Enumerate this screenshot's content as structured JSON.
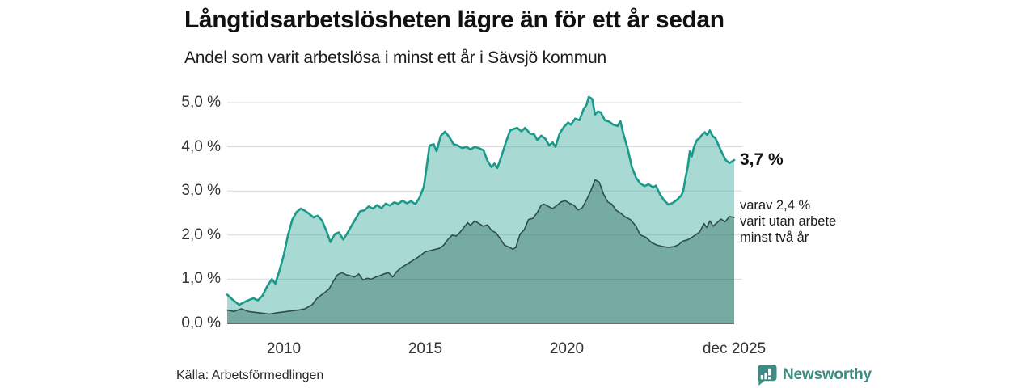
{
  "header": {
    "title": "Långtidsarbetslösheten lägre än för ett år sedan",
    "subtitle": "Andel som varit arbetslösa i minst ett år i Sävsjö kommun"
  },
  "annotations": {
    "end_value": "3,7 %",
    "secondary": [
      "varav 2,4 %",
      "varit utan arbete",
      "minst två år"
    ]
  },
  "footer": {
    "source": "Källa: Arbetsförmedlingen",
    "brand": "Newsworthy"
  },
  "colors": {
    "series1_line": "#1a9a8a",
    "series1_fill": "rgba(26,154,138,0.38)",
    "series2_line": "#2e4f47",
    "series2_fill": "rgba(30,90,76,0.36)",
    "gridline": "#d9d9d9",
    "axis": "#3a3a3a",
    "brand_teal": "#3d8b83"
  },
  "chart_data": {
    "type": "area",
    "title": "Långtidsarbetslösheten lägre än för ett år sedan",
    "subtitle": "Andel som varit arbetslösa i minst ett år i Sävsjö kommun",
    "unit": "%",
    "grid": true,
    "x_range": [
      2008.0,
      2025.92
    ],
    "y_range": [
      0,
      5.3
    ],
    "y_ticks": [
      5,
      4,
      3,
      2,
      1,
      0
    ],
    "y_tick_labels": [
      "5,0 %",
      "4,0 %",
      "3,0 %",
      "2,0 %",
      "1,0 %",
      "0,0 %"
    ],
    "x_tick_labels": [
      "2010",
      "2015",
      "2020",
      "dec 2025"
    ],
    "x_tick_years": [
      2010,
      2015,
      2020,
      2025.92
    ],
    "series": [
      {
        "name": "Arbetslösa minst ett år",
        "color": "#1a9a8a",
        "fill": "rgba(26,154,138,0.38)",
        "end_label": "3,7 %",
        "end_value": 3.7,
        "points": [
          [
            2008.0,
            0.65
          ],
          [
            2008.17,
            0.55
          ],
          [
            2008.42,
            0.42
          ],
          [
            2008.67,
            0.5
          ],
          [
            2008.92,
            0.57
          ],
          [
            2009.08,
            0.52
          ],
          [
            2009.25,
            0.63
          ],
          [
            2009.42,
            0.85
          ],
          [
            2009.58,
            1.0
          ],
          [
            2009.7,
            0.9
          ],
          [
            2009.85,
            1.2
          ],
          [
            2010.0,
            1.55
          ],
          [
            2010.15,
            2.0
          ],
          [
            2010.3,
            2.35
          ],
          [
            2010.45,
            2.52
          ],
          [
            2010.6,
            2.6
          ],
          [
            2010.75,
            2.55
          ],
          [
            2010.9,
            2.48
          ],
          [
            2011.05,
            2.4
          ],
          [
            2011.2,
            2.44
          ],
          [
            2011.35,
            2.33
          ],
          [
            2011.5,
            2.1
          ],
          [
            2011.65,
            1.84
          ],
          [
            2011.8,
            2.02
          ],
          [
            2011.95,
            2.06
          ],
          [
            2012.1,
            1.9
          ],
          [
            2012.25,
            2.05
          ],
          [
            2012.4,
            2.22
          ],
          [
            2012.55,
            2.38
          ],
          [
            2012.7,
            2.54
          ],
          [
            2012.85,
            2.56
          ],
          [
            2013.0,
            2.65
          ],
          [
            2013.15,
            2.6
          ],
          [
            2013.3,
            2.68
          ],
          [
            2013.45,
            2.61
          ],
          [
            2013.6,
            2.71
          ],
          [
            2013.75,
            2.67
          ],
          [
            2013.9,
            2.74
          ],
          [
            2014.05,
            2.71
          ],
          [
            2014.2,
            2.78
          ],
          [
            2014.35,
            2.72
          ],
          [
            2014.5,
            2.77
          ],
          [
            2014.65,
            2.7
          ],
          [
            2014.8,
            2.85
          ],
          [
            2014.95,
            3.1
          ],
          [
            2015.05,
            3.55
          ],
          [
            2015.15,
            4.03
          ],
          [
            2015.3,
            4.06
          ],
          [
            2015.4,
            3.9
          ],
          [
            2015.55,
            4.25
          ],
          [
            2015.7,
            4.34
          ],
          [
            2015.85,
            4.22
          ],
          [
            2016.0,
            4.06
          ],
          [
            2016.15,
            4.03
          ],
          [
            2016.3,
            3.97
          ],
          [
            2016.45,
            4.0
          ],
          [
            2016.6,
            3.94
          ],
          [
            2016.75,
            4.0
          ],
          [
            2016.9,
            3.97
          ],
          [
            2017.06,
            3.92
          ],
          [
            2017.2,
            3.68
          ],
          [
            2017.34,
            3.54
          ],
          [
            2017.45,
            3.62
          ],
          [
            2017.55,
            3.52
          ],
          [
            2017.7,
            3.8
          ],
          [
            2017.85,
            4.1
          ],
          [
            2018.0,
            4.37
          ],
          [
            2018.1,
            4.4
          ],
          [
            2018.25,
            4.43
          ],
          [
            2018.4,
            4.35
          ],
          [
            2018.53,
            4.43
          ],
          [
            2018.7,
            4.3
          ],
          [
            2018.85,
            4.28
          ],
          [
            2018.96,
            4.15
          ],
          [
            2019.1,
            4.25
          ],
          [
            2019.25,
            4.18
          ],
          [
            2019.38,
            4.03
          ],
          [
            2019.5,
            4.1
          ],
          [
            2019.6,
            4.0
          ],
          [
            2019.75,
            4.3
          ],
          [
            2019.9,
            4.45
          ],
          [
            2020.05,
            4.55
          ],
          [
            2020.15,
            4.5
          ],
          [
            2020.3,
            4.64
          ],
          [
            2020.45,
            4.6
          ],
          [
            2020.6,
            4.86
          ],
          [
            2020.7,
            4.95
          ],
          [
            2020.78,
            5.13
          ],
          [
            2020.9,
            5.08
          ],
          [
            2021.0,
            4.73
          ],
          [
            2021.1,
            4.8
          ],
          [
            2021.2,
            4.78
          ],
          [
            2021.35,
            4.6
          ],
          [
            2021.5,
            4.57
          ],
          [
            2021.65,
            4.5
          ],
          [
            2021.8,
            4.47
          ],
          [
            2021.9,
            4.58
          ],
          [
            2022.0,
            4.3
          ],
          [
            2022.15,
            3.97
          ],
          [
            2022.3,
            3.55
          ],
          [
            2022.45,
            3.3
          ],
          [
            2022.6,
            3.17
          ],
          [
            2022.75,
            3.11
          ],
          [
            2022.9,
            3.15
          ],
          [
            2023.05,
            3.08
          ],
          [
            2023.15,
            3.12
          ],
          [
            2023.3,
            2.92
          ],
          [
            2023.45,
            2.78
          ],
          [
            2023.6,
            2.69
          ],
          [
            2023.75,
            2.73
          ],
          [
            2023.9,
            2.8
          ],
          [
            2024.05,
            2.9
          ],
          [
            2024.12,
            3.0
          ],
          [
            2024.2,
            3.3
          ],
          [
            2024.28,
            3.55
          ],
          [
            2024.35,
            3.9
          ],
          [
            2024.42,
            3.78
          ],
          [
            2024.5,
            4.0
          ],
          [
            2024.6,
            4.15
          ],
          [
            2024.7,
            4.2
          ],
          [
            2024.78,
            4.27
          ],
          [
            2024.88,
            4.33
          ],
          [
            2024.96,
            4.27
          ],
          [
            2025.06,
            4.37
          ],
          [
            2025.16,
            4.24
          ],
          [
            2025.25,
            4.2
          ],
          [
            2025.35,
            4.06
          ],
          [
            2025.5,
            3.85
          ],
          [
            2025.62,
            3.7
          ],
          [
            2025.75,
            3.63
          ],
          [
            2025.92,
            3.7
          ]
        ]
      },
      {
        "name": "varav utan arbete minst två år",
        "color": "#2e4f47",
        "fill": "rgba(30,90,76,0.36)",
        "end_label": "2,4 %",
        "end_value": 2.4,
        "points": [
          [
            2008.0,
            0.3
          ],
          [
            2008.25,
            0.27
          ],
          [
            2008.5,
            0.33
          ],
          [
            2008.75,
            0.27
          ],
          [
            2009.0,
            0.25
          ],
          [
            2009.25,
            0.23
          ],
          [
            2009.5,
            0.21
          ],
          [
            2009.75,
            0.24
          ],
          [
            2010.0,
            0.26
          ],
          [
            2010.25,
            0.28
          ],
          [
            2010.5,
            0.3
          ],
          [
            2010.75,
            0.33
          ],
          [
            2011.0,
            0.42
          ],
          [
            2011.15,
            0.55
          ],
          [
            2011.3,
            0.63
          ],
          [
            2011.45,
            0.7
          ],
          [
            2011.6,
            0.78
          ],
          [
            2011.75,
            0.95
          ],
          [
            2011.9,
            1.1
          ],
          [
            2012.05,
            1.15
          ],
          [
            2012.2,
            1.1
          ],
          [
            2012.35,
            1.08
          ],
          [
            2012.5,
            1.05
          ],
          [
            2012.65,
            1.12
          ],
          [
            2012.8,
            0.98
          ],
          [
            2012.95,
            1.02
          ],
          [
            2013.1,
            1.0
          ],
          [
            2013.25,
            1.05
          ],
          [
            2013.4,
            1.08
          ],
          [
            2013.55,
            1.12
          ],
          [
            2013.7,
            1.15
          ],
          [
            2013.85,
            1.05
          ],
          [
            2014.0,
            1.18
          ],
          [
            2014.15,
            1.26
          ],
          [
            2014.3,
            1.32
          ],
          [
            2014.5,
            1.4
          ],
          [
            2014.75,
            1.5
          ],
          [
            2015.0,
            1.62
          ],
          [
            2015.25,
            1.66
          ],
          [
            2015.5,
            1.7
          ],
          [
            2015.65,
            1.77
          ],
          [
            2015.8,
            1.9
          ],
          [
            2015.95,
            2.0
          ],
          [
            2016.1,
            1.98
          ],
          [
            2016.25,
            2.08
          ],
          [
            2016.4,
            2.2
          ],
          [
            2016.5,
            2.28
          ],
          [
            2016.6,
            2.22
          ],
          [
            2016.75,
            2.32
          ],
          [
            2016.9,
            2.26
          ],
          [
            2017.05,
            2.2
          ],
          [
            2017.2,
            2.23
          ],
          [
            2017.35,
            2.1
          ],
          [
            2017.5,
            2.05
          ],
          [
            2017.65,
            1.92
          ],
          [
            2017.8,
            1.77
          ],
          [
            2017.95,
            1.73
          ],
          [
            2018.1,
            1.68
          ],
          [
            2018.2,
            1.72
          ],
          [
            2018.35,
            2.02
          ],
          [
            2018.5,
            2.12
          ],
          [
            2018.65,
            2.35
          ],
          [
            2018.8,
            2.38
          ],
          [
            2018.95,
            2.5
          ],
          [
            2019.1,
            2.68
          ],
          [
            2019.2,
            2.7
          ],
          [
            2019.35,
            2.65
          ],
          [
            2019.5,
            2.6
          ],
          [
            2019.65,
            2.67
          ],
          [
            2019.8,
            2.75
          ],
          [
            2019.95,
            2.78
          ],
          [
            2020.1,
            2.72
          ],
          [
            2020.25,
            2.68
          ],
          [
            2020.4,
            2.57
          ],
          [
            2020.55,
            2.62
          ],
          [
            2020.7,
            2.8
          ],
          [
            2020.85,
            3.0
          ],
          [
            2021.0,
            3.25
          ],
          [
            2021.15,
            3.2
          ],
          [
            2021.3,
            2.93
          ],
          [
            2021.45,
            2.75
          ],
          [
            2021.6,
            2.7
          ],
          [
            2021.75,
            2.56
          ],
          [
            2021.9,
            2.5
          ],
          [
            2022.05,
            2.42
          ],
          [
            2022.25,
            2.35
          ],
          [
            2022.45,
            2.2
          ],
          [
            2022.6,
            2.0
          ],
          [
            2022.8,
            1.95
          ],
          [
            2023.0,
            1.83
          ],
          [
            2023.2,
            1.77
          ],
          [
            2023.4,
            1.74
          ],
          [
            2023.6,
            1.72
          ],
          [
            2023.8,
            1.74
          ],
          [
            2023.95,
            1.78
          ],
          [
            2024.1,
            1.86
          ],
          [
            2024.3,
            1.9
          ],
          [
            2024.5,
            1.98
          ],
          [
            2024.7,
            2.07
          ],
          [
            2024.85,
            2.26
          ],
          [
            2024.95,
            2.17
          ],
          [
            2025.06,
            2.32
          ],
          [
            2025.17,
            2.2
          ],
          [
            2025.28,
            2.26
          ],
          [
            2025.45,
            2.36
          ],
          [
            2025.6,
            2.3
          ],
          [
            2025.75,
            2.42
          ],
          [
            2025.92,
            2.4
          ]
        ]
      }
    ]
  }
}
